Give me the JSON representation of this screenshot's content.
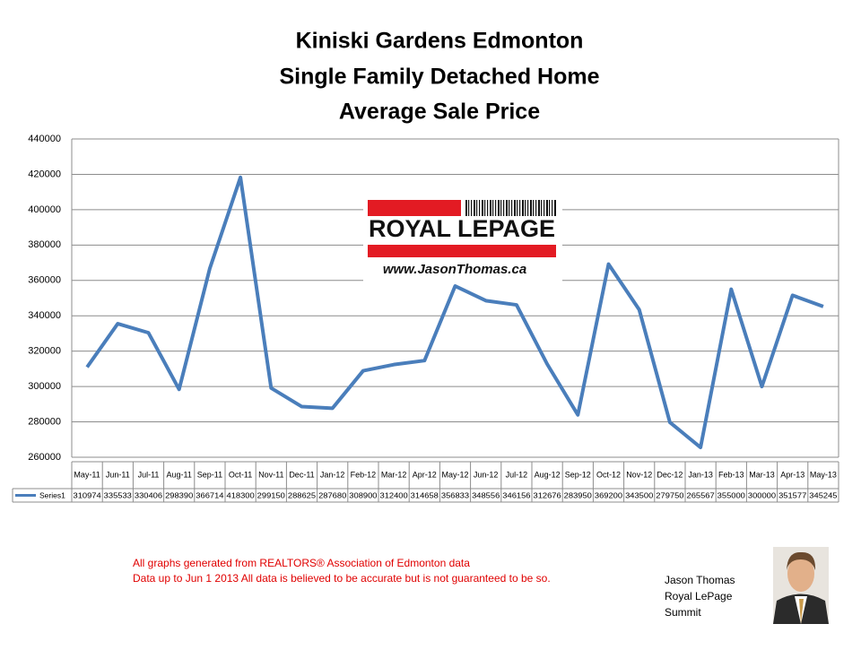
{
  "chart_data": {
    "type": "line",
    "title_lines": [
      "Kiniski Gardens Edmonton",
      "Single Family Detached Home",
      "Average Sale Price"
    ],
    "categories": [
      "May-11",
      "Jun-11",
      "Jul-11",
      "Aug-11",
      "Sep-11",
      "Oct-11",
      "Nov-11",
      "Dec-11",
      "Jan-12",
      "Feb-12",
      "Mar-12",
      "Apr-12",
      "May-12",
      "Jun-12",
      "Jul-12",
      "Aug-12",
      "Sep-12",
      "Oct-12",
      "Nov-12",
      "Dec-12",
      "Jan-13",
      "Feb-13",
      "Mar-13",
      "Apr-13",
      "May-13"
    ],
    "series": [
      {
        "name": "Series1",
        "color": "#4a7ebb",
        "values": [
          310974,
          335533,
          330406,
          298390,
          366714,
          418300,
          299150,
          288625,
          287680,
          308900,
          312400,
          314658,
          356833,
          348556,
          346156,
          312676,
          283950,
          369200,
          343500,
          279750,
          265567,
          355000,
          300000,
          351577,
          345245
        ]
      }
    ],
    "ylim": [
      260000,
      440000
    ],
    "yticks": [
      260000,
      280000,
      300000,
      320000,
      340000,
      360000,
      380000,
      400000,
      420000,
      440000
    ],
    "grid": true,
    "data_table": true
  },
  "logo": {
    "brand": "ROYAL LEPAGE",
    "url": "www.JasonThomas.ca"
  },
  "notes": [
    "All graphs generated from REALTORS® Association of Edmonton data",
    "Data up to  Jun 1 2013  All data is believed to be accurate but is not guaranteed to be so."
  ],
  "signature": [
    "Jason Thomas",
    "Royal LePage",
    "Summit"
  ]
}
